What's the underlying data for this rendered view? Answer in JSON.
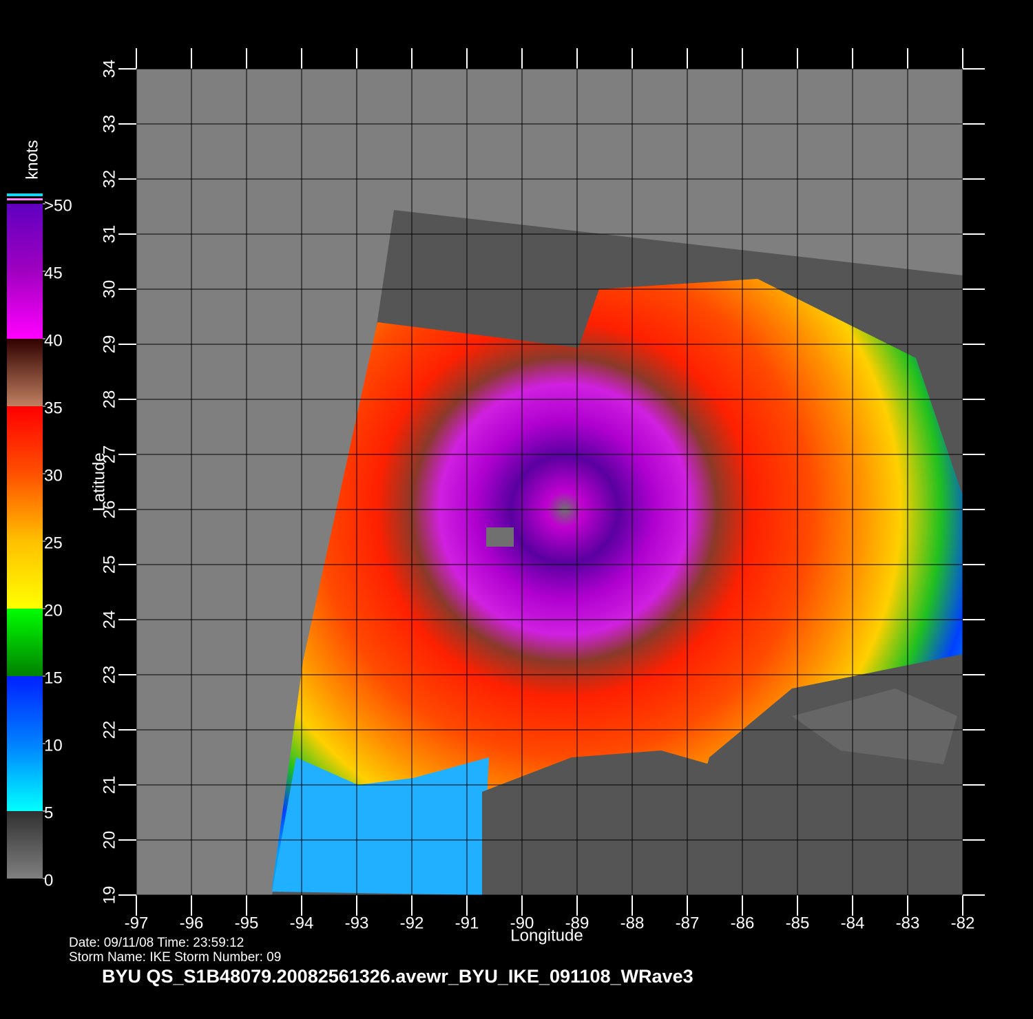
{
  "map": {
    "xlabel": "Longitude",
    "ylabel": "Latitude",
    "xlim": [
      -97,
      -82
    ],
    "ylim": [
      19,
      34
    ],
    "xticks": [
      -97,
      -96,
      -95,
      -94,
      -93,
      -92,
      -91,
      -90,
      -89,
      -88,
      -87,
      -86,
      -85,
      -84,
      -83,
      -82
    ],
    "yticks": [
      19,
      20,
      21,
      22,
      23,
      24,
      25,
      26,
      27,
      28,
      29,
      30,
      31,
      32,
      33,
      34
    ]
  },
  "colorbar": {
    "unit": "knots",
    "lim": [
      0,
      50
    ],
    "ticks": [
      0,
      5,
      10,
      15,
      20,
      25,
      30,
      35,
      40,
      45,
      {
        "value": 50,
        "label": ">50"
      }
    ]
  },
  "footer": {
    "date_line": "Date: 09/11/08   Time: 23:59:12",
    "storm_line": "Storm  Name: IKE    Storm  Number: 09",
    "file_name": "BYU  QS_S1B48079.20082561326.avewr_BYU_IKE_091108_WRave3"
  }
}
